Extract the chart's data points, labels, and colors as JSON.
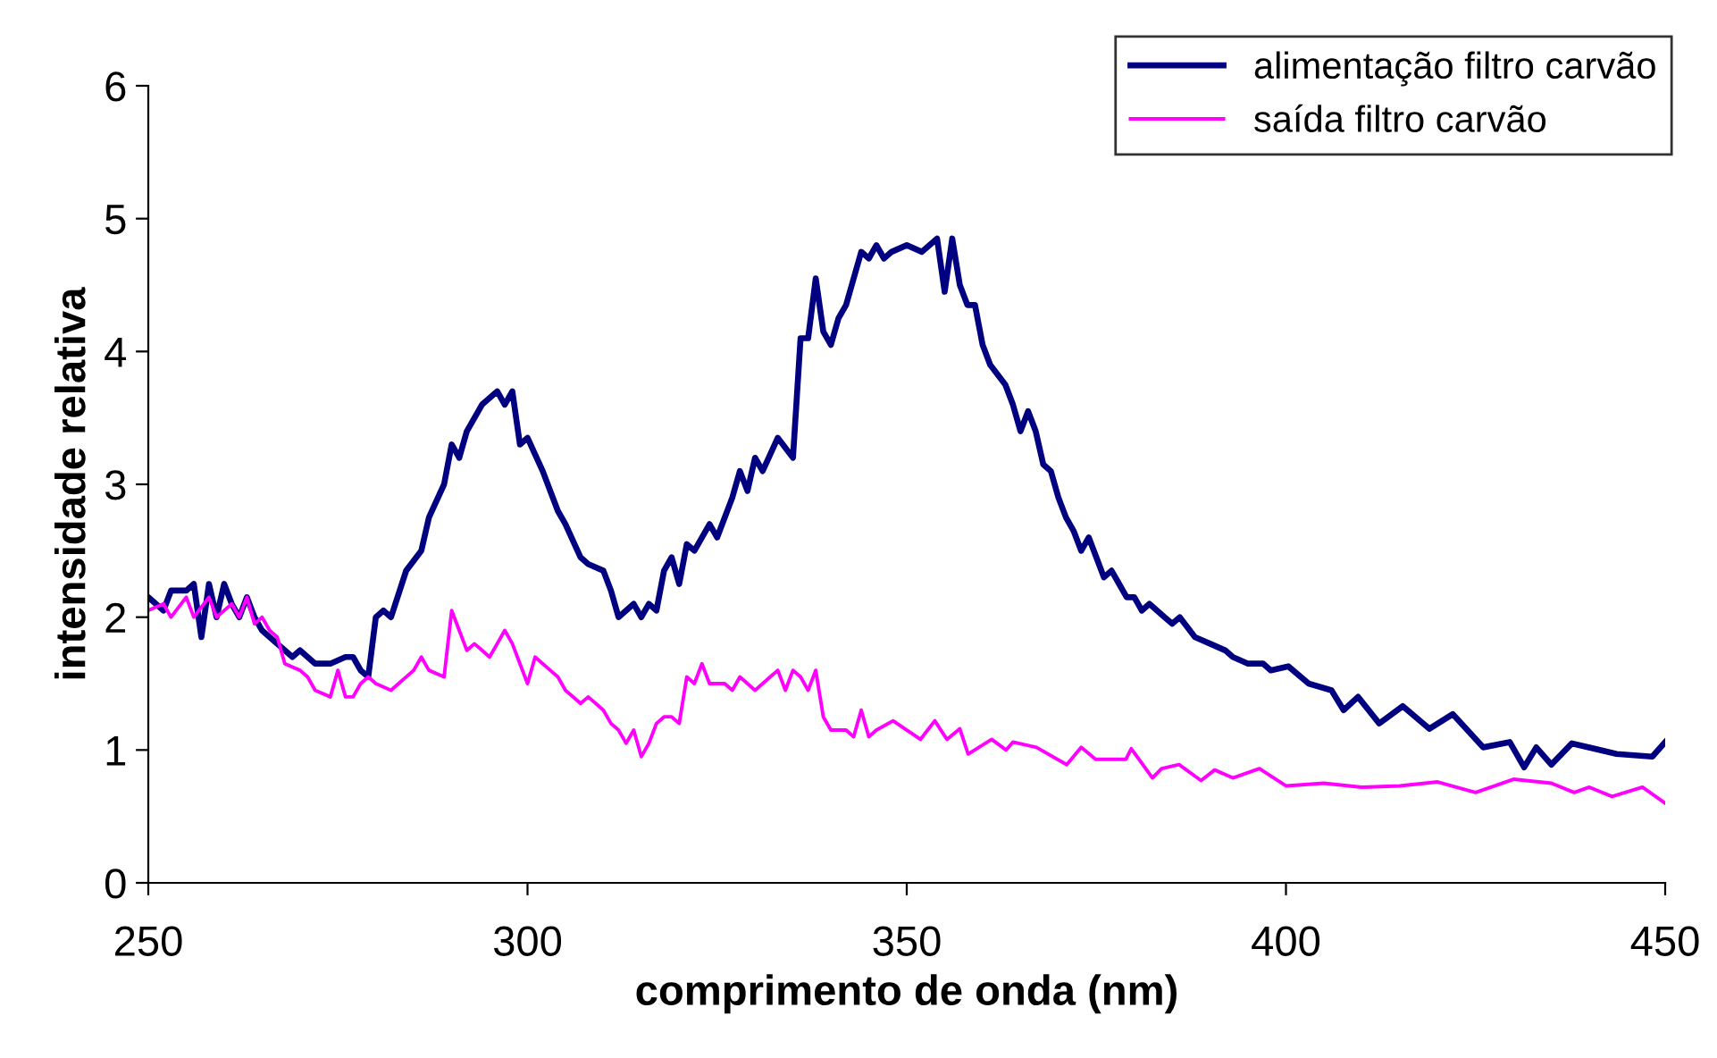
{
  "chart_data": {
    "type": "line",
    "xlabel": "comprimento de onda (nm)",
    "ylabel": "intensidade relativa",
    "xlim": [
      250,
      450
    ],
    "xticks": [
      250,
      300,
      350,
      400,
      450
    ],
    "ylim": [
      0,
      6
    ],
    "yticks": [
      0,
      1,
      2,
      3,
      4,
      5,
      6
    ],
    "grid": false,
    "legend": "top right",
    "marker": "none",
    "line_style": "solid",
    "series": [
      {
        "name": "alimentação filtro carvão",
        "color": "#000080",
        "x": [
          250,
          252,
          253,
          255,
          256,
          257,
          258,
          259,
          260,
          261,
          262,
          263,
          264,
          265,
          266,
          268,
          269,
          270,
          271,
          272,
          274,
          276,
          277,
          278,
          279,
          280,
          281,
          282,
          284,
          286,
          287,
          289,
          290,
          291,
          292,
          294,
          296,
          297,
          298,
          299,
          300,
          302,
          304,
          305,
          307,
          308,
          310,
          311,
          312,
          313,
          314,
          315,
          316,
          317,
          318,
          319,
          320,
          321,
          322,
          324,
          325,
          327,
          328,
          329,
          330,
          331,
          333,
          335,
          336,
          337,
          338,
          339,
          340,
          341,
          342,
          344,
          345,
          346,
          347,
          348,
          350,
          352,
          354,
          355,
          356,
          357,
          358,
          359,
          360,
          361,
          363,
          364,
          365,
          366,
          367,
          368,
          369,
          370,
          371,
          372,
          373,
          374,
          375,
          376,
          377,
          378,
          379,
          380,
          381,
          382,
          384,
          385,
          386,
          388,
          390,
          392,
          393,
          395,
          397,
          398,
          400.3,
          403,
          406,
          407.6,
          409.5,
          412.3,
          415.4,
          418.9,
          422,
          426,
          429.5,
          431.4,
          433,
          435,
          437.7,
          443.6,
          448.3,
          450
        ],
        "values": [
          2.15,
          2.05,
          2.2,
          2.2,
          2.25,
          1.85,
          2.25,
          2.0,
          2.25,
          2.1,
          2.0,
          2.15,
          2.0,
          1.9,
          1.85,
          1.75,
          1.7,
          1.75,
          1.7,
          1.65,
          1.65,
          1.7,
          1.7,
          1.6,
          1.55,
          2.0,
          2.05,
          2.0,
          2.35,
          2.5,
          2.75,
          3.0,
          3.3,
          3.2,
          3.4,
          3.6,
          3.7,
          3.6,
          3.7,
          3.3,
          3.35,
          3.1,
          2.8,
          2.7,
          2.45,
          2.4,
          2.35,
          2.2,
          2.0,
          2.05,
          2.1,
          2.0,
          2.1,
          2.05,
          2.35,
          2.45,
          2.25,
          2.55,
          2.5,
          2.7,
          2.6,
          2.9,
          3.1,
          2.95,
          3.2,
          3.1,
          3.35,
          3.2,
          4.1,
          4.1,
          4.55,
          4.15,
          4.05,
          4.25,
          4.35,
          4.75,
          4.7,
          4.8,
          4.7,
          4.75,
          4.8,
          4.75,
          4.85,
          4.45,
          4.85,
          4.5,
          4.35,
          4.35,
          4.05,
          3.9,
          3.75,
          3.6,
          3.4,
          3.55,
          3.4,
          3.15,
          3.1,
          2.9,
          2.75,
          2.65,
          2.5,
          2.6,
          2.45,
          2.3,
          2.35,
          2.25,
          2.15,
          2.15,
          2.05,
          2.1,
          2.0,
          1.95,
          2.0,
          1.85,
          1.8,
          1.75,
          1.7,
          1.65,
          1.65,
          1.6,
          1.63,
          1.5,
          1.45,
          1.3,
          1.4,
          1.2,
          1.33,
          1.16,
          1.27,
          1.02,
          1.06,
          0.87,
          1.02,
          0.89,
          1.05,
          0.97,
          0.95,
          1.06
        ]
      },
      {
        "name": "saída filtro carvão",
        "color": "#ff00ff",
        "x": [
          250,
          252,
          253,
          255,
          256,
          258,
          259,
          261,
          262,
          263,
          264,
          265,
          266,
          267,
          268,
          270,
          271,
          272,
          274,
          275,
          276,
          277,
          278,
          279,
          280,
          282,
          283,
          285,
          286,
          287,
          289,
          290,
          291,
          292,
          293,
          294,
          295,
          296,
          297,
          298,
          299,
          300,
          301,
          302,
          303,
          304,
          305,
          307,
          308,
          310,
          311,
          312,
          313,
          314,
          315,
          316,
          317,
          318,
          319,
          320,
          321,
          322,
          323,
          324,
          326,
          327,
          328,
          330,
          332,
          333,
          334,
          335,
          336,
          337,
          338,
          339,
          340,
          342,
          343,
          344,
          345,
          346,
          348.2,
          351.8,
          353.7,
          355.3,
          357,
          358.1,
          361.2,
          363.1,
          364,
          367.1,
          371.1,
          373,
          374.9,
          378.9,
          379.6,
          382.4,
          383.6,
          385.9,
          388.8,
          390.6,
          393,
          396.5,
          398.4,
          400,
          405,
          410,
          415,
          420,
          425,
          430,
          435,
          438,
          440,
          443,
          447,
          450
        ],
        "values": [
          2.05,
          2.1,
          2.0,
          2.15,
          2.0,
          2.15,
          2.0,
          2.1,
          2.0,
          2.15,
          1.95,
          2.0,
          1.9,
          1.85,
          1.65,
          1.6,
          1.55,
          1.45,
          1.4,
          1.6,
          1.4,
          1.4,
          1.5,
          1.55,
          1.5,
          1.45,
          1.5,
          1.6,
          1.7,
          1.6,
          1.55,
          2.05,
          1.9,
          1.75,
          1.8,
          1.75,
          1.7,
          1.8,
          1.9,
          1.8,
          1.65,
          1.5,
          1.7,
          1.65,
          1.6,
          1.55,
          1.45,
          1.35,
          1.4,
          1.3,
          1.2,
          1.15,
          1.05,
          1.15,
          0.95,
          1.05,
          1.2,
          1.25,
          1.25,
          1.2,
          1.55,
          1.5,
          1.65,
          1.5,
          1.5,
          1.45,
          1.55,
          1.45,
          1.55,
          1.6,
          1.45,
          1.6,
          1.55,
          1.45,
          1.6,
          1.25,
          1.15,
          1.15,
          1.1,
          1.3,
          1.1,
          1.15,
          1.22,
          1.08,
          1.22,
          1.08,
          1.16,
          0.97,
          1.08,
          1.0,
          1.06,
          1.02,
          0.89,
          1.02,
          0.93,
          0.93,
          1.01,
          0.79,
          0.86,
          0.89,
          0.77,
          0.85,
          0.79,
          0.86,
          0.79,
          0.73,
          0.75,
          0.72,
          0.73,
          0.76,
          0.68,
          0.78,
          0.75,
          0.68,
          0.72,
          0.65,
          0.72,
          0.6
        ]
      }
    ]
  }
}
